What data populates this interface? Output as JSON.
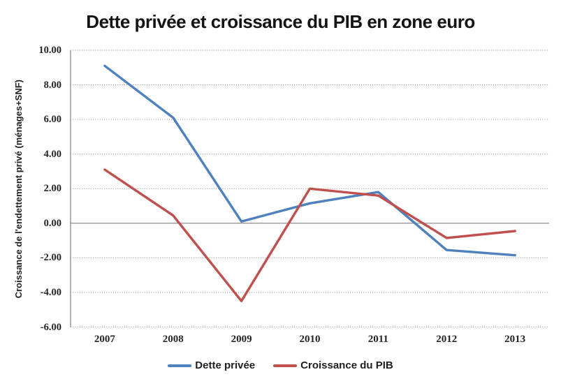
{
  "title": "Dette privée et croissance du PIB en zone euro",
  "chart_data": {
    "type": "line",
    "title": "Dette privée et croissance du PIB en zone euro",
    "xlabel": "",
    "ylabel": "Croissance de l'endettement privé (ménages+SNF)",
    "categories": [
      "2007",
      "2008",
      "2009",
      "2010",
      "2011",
      "2012",
      "2013"
    ],
    "series": [
      {
        "name": "Dette privée",
        "color": "#4F81BD",
        "values": [
          9.1,
          6.1,
          0.1,
          1.15,
          1.8,
          -1.55,
          -1.85
        ]
      },
      {
        "name": "Croissance du PIB",
        "color": "#C0504D",
        "values": [
          3.1,
          0.45,
          -4.5,
          2.0,
          1.6,
          -0.85,
          -0.45
        ]
      }
    ],
    "ylim": [
      -6,
      10
    ],
    "ytick_step": 2,
    "ytick_labels": [
      "10.00",
      "8.00",
      "6.00",
      "4.00",
      "2.00",
      "0.00",
      "-2.00",
      "-4.00",
      "-6.00"
    ],
    "grid": "horizontal-dotted",
    "legend_position": "bottom",
    "colors": {
      "gridline": "#8a8a8a",
      "zero_line": "#808080",
      "axis_line": "#808080",
      "title_text": "#141414",
      "tick_text": "#262626",
      "background": "#ffffff"
    }
  }
}
